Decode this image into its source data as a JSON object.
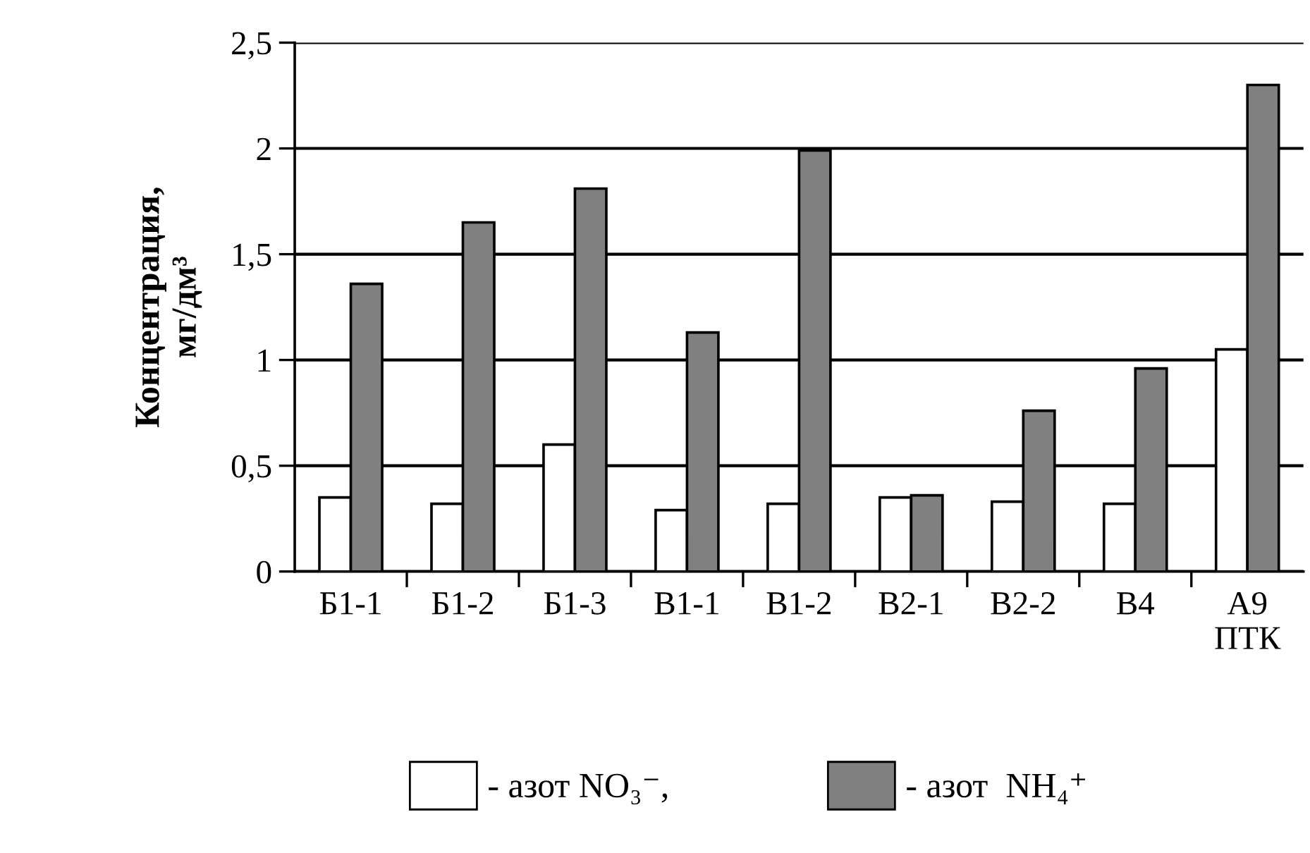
{
  "chart_data": {
    "type": "bar",
    "ylabel": "Концентрация,\nмг/дм³",
    "categories": [
      "Б1-1",
      "Б1-2",
      "Б1-3",
      "В1-1",
      "В1-2",
      "В2-1",
      "В2-2",
      "В4",
      "А9\nПТК"
    ],
    "series": [
      {
        "name": "- азот NO₃⁻,",
        "color": "#ffffff",
        "values": [
          0.35,
          0.32,
          0.6,
          0.29,
          0.32,
          0.35,
          0.33,
          0.32,
          1.05
        ]
      },
      {
        "name": "- азот  NH₄⁺",
        "color": "#808080",
        "values": [
          1.36,
          1.65,
          1.81,
          1.13,
          1.99,
          0.36,
          0.76,
          0.96,
          2.3
        ]
      }
    ],
    "ylim": [
      0,
      2.5
    ],
    "yticks": [
      0,
      {
        "value": 0.5,
        "label": "0,5"
      },
      1,
      {
        "value": 1.5,
        "label": "1,5"
      },
      2,
      {
        "value": 2.5,
        "label": "2,5"
      }
    ],
    "grid": "y",
    "legend": "bottom"
  }
}
